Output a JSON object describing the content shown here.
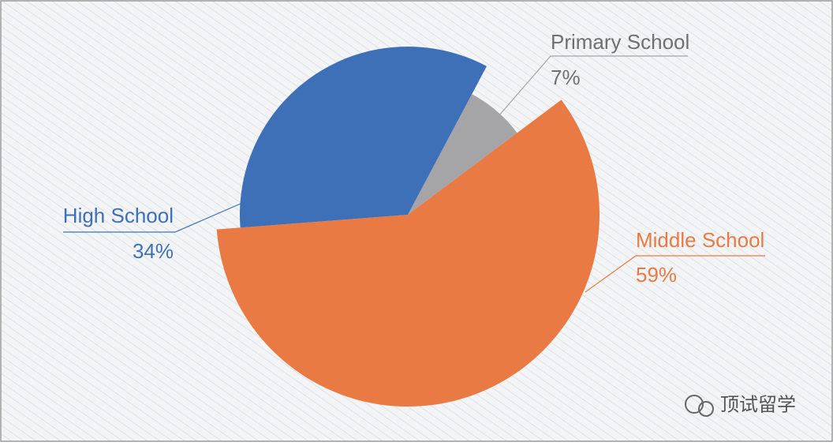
{
  "chart_data": {
    "type": "pie",
    "categories": [
      "Primary School",
      "Middle School",
      "High School"
    ],
    "values": [
      7,
      59,
      34
    ],
    "value_labels": [
      "7%",
      "59%",
      "34%"
    ],
    "colors": [
      "#a5a5a7",
      "#e97a44",
      "#3e70b8"
    ]
  },
  "watermark": "顶试留学"
}
